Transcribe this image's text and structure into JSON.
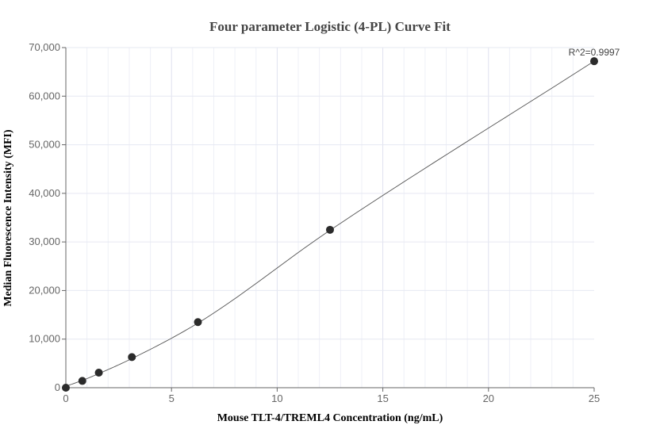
{
  "chart_data": {
    "type": "scatter",
    "title": "Four parameter Logistic (4-PL) Curve Fit",
    "xlabel": "Mouse TLT-4/TREML4 Concentration (ng/mL)",
    "ylabel": "Median Fluorescence Intensity (MFI)",
    "xlim": [
      0,
      25
    ],
    "ylim": [
      0,
      70000
    ],
    "xticks": [
      0,
      5,
      10,
      15,
      20,
      25
    ],
    "xtick_labels": [
      "0",
      "5",
      "10",
      "15",
      "20",
      "25"
    ],
    "yticks": [
      0,
      10000,
      20000,
      30000,
      40000,
      50000,
      60000,
      70000
    ],
    "ytick_labels": [
      "0",
      "10,000",
      "20,000",
      "30,000",
      "40,000",
      "50,000",
      "60,000",
      "70,000"
    ],
    "grid": true,
    "points": {
      "x": [
        0,
        0.78,
        1.56,
        3.125,
        6.25,
        12.5,
        25
      ],
      "y": [
        0,
        1400,
        3100,
        6300,
        13500,
        32500,
        67200
      ]
    },
    "fit_curve": {
      "x": [
        0,
        0.78,
        1.56,
        3.125,
        6.25,
        12.5,
        25
      ],
      "y": [
        300,
        1500,
        2900,
        6000,
        13300,
        32400,
        67200
      ]
    },
    "annotation": "R^2=0.9997",
    "colors": {
      "points": "#2b2b2b",
      "curve": "#555555",
      "grid": "#e6e8f2",
      "axis": "#666666"
    }
  }
}
